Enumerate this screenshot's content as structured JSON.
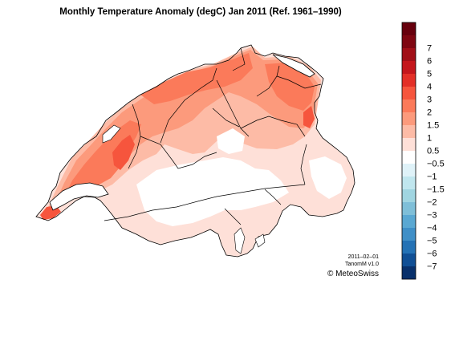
{
  "title": "Monthly Temperature Anomaly (degC) Jan 2011  (Ref. 1961–1990)",
  "legend": {
    "bins": [
      {
        "color": "#67000d",
        "label": ""
      },
      {
        "color": "#7f0611",
        "label": "7"
      },
      {
        "color": "#a10f17",
        "label": "6"
      },
      {
        "color": "#c4161c",
        "label": "5"
      },
      {
        "color": "#e32f27",
        "label": "4"
      },
      {
        "color": "#f6553d",
        "label": "3"
      },
      {
        "color": "#fb7a5a",
        "label": "2"
      },
      {
        "color": "#fc9a7c",
        "label": "1.5"
      },
      {
        "color": "#fdbba6",
        "label": "1"
      },
      {
        "color": "#fee0d8",
        "label": "0.5"
      },
      {
        "color": "#ffffff",
        "label": "−0.5"
      },
      {
        "color": "#dff2f8",
        "label": "−1"
      },
      {
        "color": "#c0e6ee",
        "label": "−1.5"
      },
      {
        "color": "#a0d5e1",
        "label": "−2"
      },
      {
        "color": "#7fbfd8",
        "label": "−3"
      },
      {
        "color": "#5aa8d2",
        "label": "−4"
      },
      {
        "color": "#3f8fc7",
        "label": "−5"
      },
      {
        "color": "#2472b5",
        "label": "−6"
      },
      {
        "color": "#104f95",
        "label": "−7"
      },
      {
        "color": "#08306b",
        "label": ""
      }
    ]
  },
  "credits": {
    "date": "2011–02–01",
    "version": "TanomM v1.0",
    "org": "© MeteoSwiss"
  }
}
